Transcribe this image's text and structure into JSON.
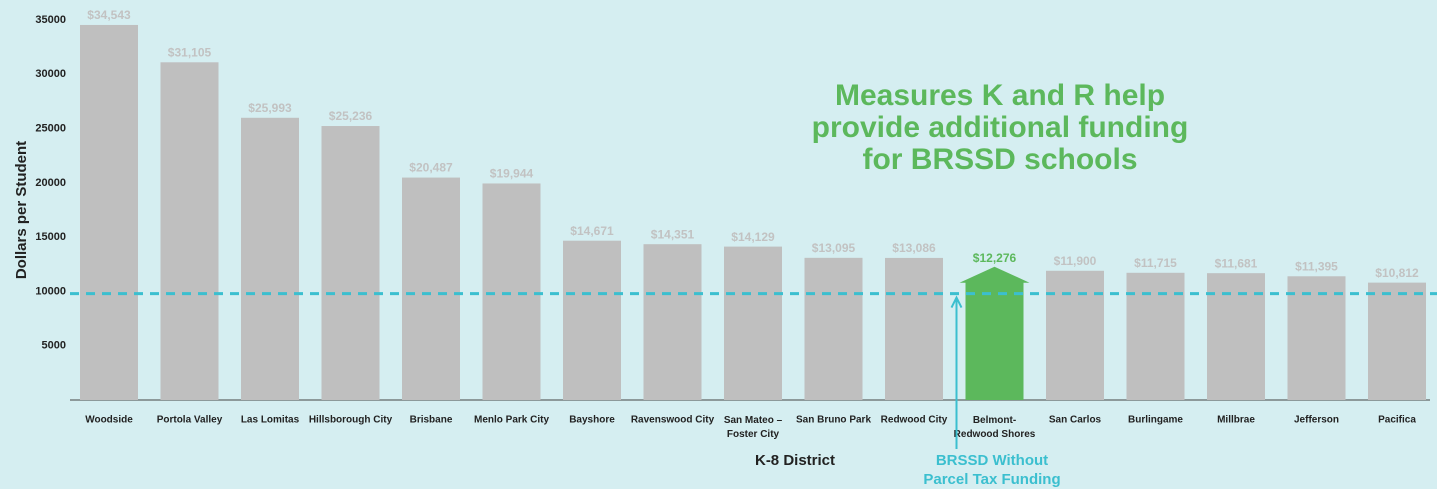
{
  "chart_data": {
    "type": "bar",
    "categories": [
      "Woodside",
      "Portola Valley",
      "Las Lomitas",
      "Hillsborough City",
      "Brisbane",
      "Menlo Park City",
      "Bayshore",
      "Ravenswood City",
      "San Mateo –\nFoster City",
      "San Bruno Park",
      "Redwood City",
      "Belmont-\nRedwood Shores",
      "San Carlos",
      "Burlingame",
      "Millbrae",
      "Jefferson",
      "Pacifica"
    ],
    "values": [
      34543,
      31105,
      25993,
      25236,
      20487,
      19944,
      14671,
      14351,
      14129,
      13095,
      13086,
      12276,
      11900,
      11715,
      11681,
      11395,
      10812
    ],
    "value_labels": [
      "$34,543",
      "$31,105",
      "$25,993",
      "$25,236",
      "$20,487",
      "$19,944",
      "$14,671",
      "$14,351",
      "$14,129",
      "$13,095",
      "$13,086",
      "$12,276",
      "$11,900",
      "$11,715",
      "$11,681",
      "$11,395",
      "$10,812"
    ],
    "color": "#bfbfbf",
    "highlight_index": 11,
    "highlight_color": "#5cb85c",
    "x_label": "K-8 District",
    "y_label": "Dollars per Student",
    "ylim": [
      0,
      35000
    ],
    "yticks": [
      5000,
      10000,
      15000,
      20000,
      25000,
      30000,
      35000
    ],
    "reference_line": {
      "value": 9800,
      "color": "#3bbfcf",
      "label": "BRSSD Without\nParcel Tax Funding"
    },
    "annotation": "Measures K and R help\nprovide additional funding\nfor BRSSD schools"
  }
}
